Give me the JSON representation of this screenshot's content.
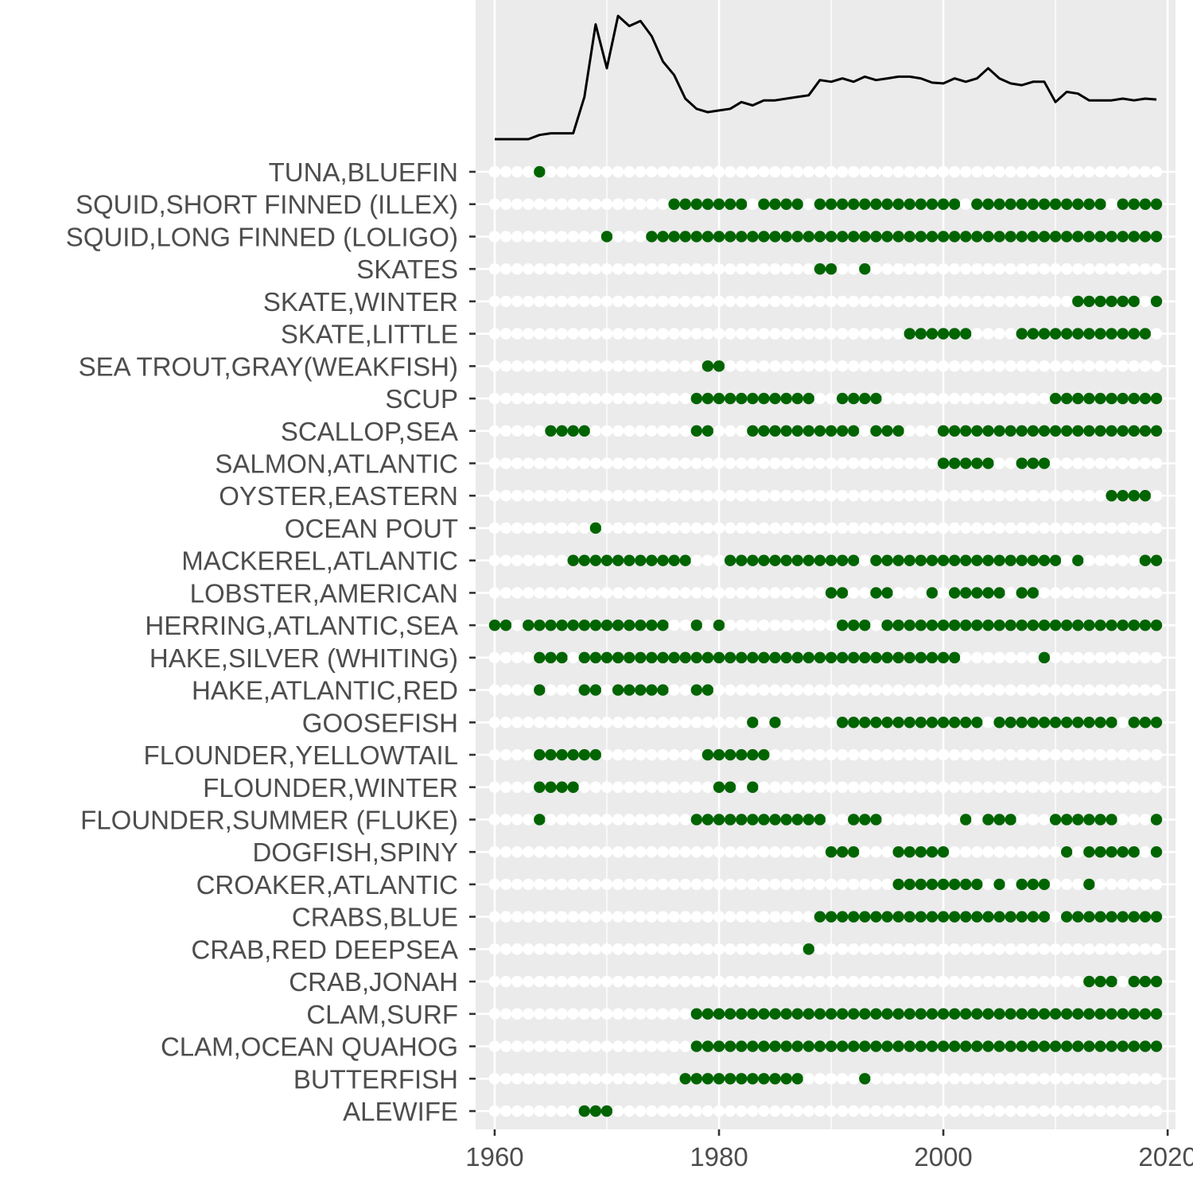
{
  "chart_data": [
    {
      "type": "line",
      "title": "",
      "xlabel": "",
      "ylabel": "",
      "xlim": [
        1958.3,
        2020.7
      ],
      "ylim": [
        0,
        12
      ],
      "grid": true,
      "y_ticks_shown": false,
      "colors": {
        "panel": "#ebebeb",
        "grid": "#ffffff",
        "line": "#000000"
      },
      "x": [
        1960,
        1961,
        1962,
        1963,
        1964,
        1965,
        1966,
        1967,
        1968,
        1969,
        1970,
        1971,
        1972,
        1973,
        1974,
        1975,
        1976,
        1977,
        1978,
        1979,
        1980,
        1981,
        1982,
        1983,
        1984,
        1985,
        1986,
        1987,
        1988,
        1989,
        1990,
        1991,
        1992,
        1993,
        1994,
        1995,
        1996,
        1997,
        1998,
        1999,
        2000,
        2001,
        2002,
        2003,
        2004,
        2005,
        2006,
        2007,
        2008,
        2009,
        2010,
        2011,
        2012,
        2013,
        2014,
        2015,
        2016,
        2017,
        2018,
        2019
      ],
      "y": [
        0,
        0,
        0,
        0,
        0.25,
        0.35,
        0.35,
        0.35,
        2.5,
        6.8,
        4.2,
        7.3,
        6.7,
        7.0,
        6.1,
        4.6,
        3.8,
        2.4,
        1.8,
        1.6,
        1.7,
        1.8,
        2.2,
        2.0,
        2.3,
        2.3,
        2.4,
        2.5,
        2.6,
        3.5,
        3.4,
        3.6,
        3.4,
        3.7,
        3.5,
        3.6,
        3.7,
        3.7,
        3.6,
        3.35,
        3.3,
        3.6,
        3.4,
        3.6,
        4.2,
        3.6,
        3.3,
        3.2,
        3.4,
        3.4,
        2.2,
        2.8,
        2.7,
        2.3,
        2.3,
        2.3,
        2.4,
        2.3,
        2.4,
        2.35
      ]
    },
    {
      "type": "scatter",
      "title": "",
      "xlabel": "",
      "ylabel": "",
      "xlim": [
        1958.3,
        2020.7
      ],
      "x_ticks": [
        1960,
        1980,
        2000,
        2020
      ],
      "year_range": [
        1960,
        2019
      ],
      "grid": true,
      "colors": {
        "panel": "#ebebeb",
        "grid": "#ffffff",
        "absent": "#ffffff",
        "present": "#006400",
        "tick": "#333333"
      },
      "categories": [
        "TUNA,BLUEFIN",
        "SQUID,SHORT FINNED (ILLEX)",
        "SQUID,LONG FINNED (LOLIGO)",
        "SKATES",
        "SKATE,WINTER",
        "SKATE,LITTLE",
        "SEA TROUT,GRAY(WEAKFISH)",
        "SCUP",
        "SCALLOP,SEA",
        "SALMON,ATLANTIC",
        "OYSTER,EASTERN",
        "OCEAN POUT",
        "MACKEREL,ATLANTIC",
        "LOBSTER,AMERICAN",
        "HERRING,ATLANTIC,SEA",
        "HAKE,SILVER (WHITING)",
        "HAKE,ATLANTIC,RED",
        "GOOSEFISH",
        "FLOUNDER,YELLOWTAIL",
        "FLOUNDER,WINTER",
        "FLOUNDER,SUMMER (FLUKE)",
        "DOGFISH,SPINY",
        "CROAKER,ATLANTIC",
        "CRABS,BLUE",
        "CRAB,RED DEEPSEA",
        "CRAB,JONAH",
        "CLAM,SURF",
        "CLAM,OCEAN QUAHOG",
        "BUTTERFISH",
        "ALEWIFE"
      ],
      "present_ranges": [
        [
          [
            1964,
            1964
          ]
        ],
        [
          [
            1976,
            1982
          ],
          [
            1984,
            1987
          ],
          [
            1989,
            2001
          ],
          [
            2003,
            2014
          ],
          [
            2016,
            2019
          ]
        ],
        [
          [
            1970,
            1970
          ],
          [
            1974,
            2019
          ]
        ],
        [
          [
            1989,
            1990
          ],
          [
            1993,
            1993
          ]
        ],
        [
          [
            2012,
            2017
          ],
          [
            2019,
            2019
          ]
        ],
        [
          [
            1997,
            2002
          ],
          [
            2007,
            2018
          ]
        ],
        [
          [
            1979,
            1980
          ]
        ],
        [
          [
            1978,
            1988
          ],
          [
            1991,
            1994
          ],
          [
            2010,
            2019
          ]
        ],
        [
          [
            1965,
            1968
          ],
          [
            1978,
            1979
          ],
          [
            1983,
            1992
          ],
          [
            1994,
            1996
          ],
          [
            2000,
            2019
          ]
        ],
        [
          [
            2000,
            2004
          ],
          [
            2007,
            2009
          ]
        ],
        [
          [
            2015,
            2018
          ]
        ],
        [
          [
            1969,
            1969
          ]
        ],
        [
          [
            1967,
            1977
          ],
          [
            1981,
            1992
          ],
          [
            1994,
            2010
          ],
          [
            2012,
            2012
          ],
          [
            2018,
            2019
          ]
        ],
        [
          [
            1990,
            1991
          ],
          [
            1994,
            1995
          ],
          [
            1999,
            1999
          ],
          [
            2001,
            2005
          ],
          [
            2007,
            2008
          ]
        ],
        [
          [
            1960,
            1961
          ],
          [
            1963,
            1975
          ],
          [
            1978,
            1978
          ],
          [
            1980,
            1980
          ],
          [
            1991,
            1993
          ],
          [
            1995,
            2019
          ]
        ],
        [
          [
            1964,
            1966
          ],
          [
            1968,
            2001
          ],
          [
            2009,
            2009
          ]
        ],
        [
          [
            1964,
            1964
          ],
          [
            1968,
            1969
          ],
          [
            1971,
            1975
          ],
          [
            1978,
            1979
          ]
        ],
        [
          [
            1983,
            1983
          ],
          [
            1985,
            1985
          ],
          [
            1991,
            2003
          ],
          [
            2005,
            2015
          ],
          [
            2017,
            2019
          ]
        ],
        [
          [
            1964,
            1969
          ],
          [
            1979,
            1984
          ]
        ],
        [
          [
            1964,
            1967
          ],
          [
            1980,
            1981
          ],
          [
            1983,
            1983
          ]
        ],
        [
          [
            1964,
            1964
          ],
          [
            1978,
            1989
          ],
          [
            1992,
            1994
          ],
          [
            2002,
            2002
          ],
          [
            2004,
            2006
          ],
          [
            2010,
            2015
          ],
          [
            2019,
            2019
          ]
        ],
        [
          [
            1990,
            1992
          ],
          [
            1996,
            2000
          ],
          [
            2011,
            2011
          ],
          [
            2013,
            2017
          ],
          [
            2019,
            2019
          ]
        ],
        [
          [
            1996,
            2003
          ],
          [
            2005,
            2005
          ],
          [
            2007,
            2009
          ],
          [
            2013,
            2013
          ]
        ],
        [
          [
            1989,
            2009
          ],
          [
            2011,
            2019
          ]
        ],
        [
          [
            1988,
            1988
          ]
        ],
        [
          [
            2013,
            2015
          ],
          [
            2017,
            2019
          ]
        ],
        [
          [
            1978,
            2019
          ]
        ],
        [
          [
            1978,
            2019
          ]
        ],
        [
          [
            1977,
            1987
          ],
          [
            1993,
            1993
          ]
        ],
        [
          [
            1968,
            1970
          ]
        ]
      ]
    }
  ]
}
